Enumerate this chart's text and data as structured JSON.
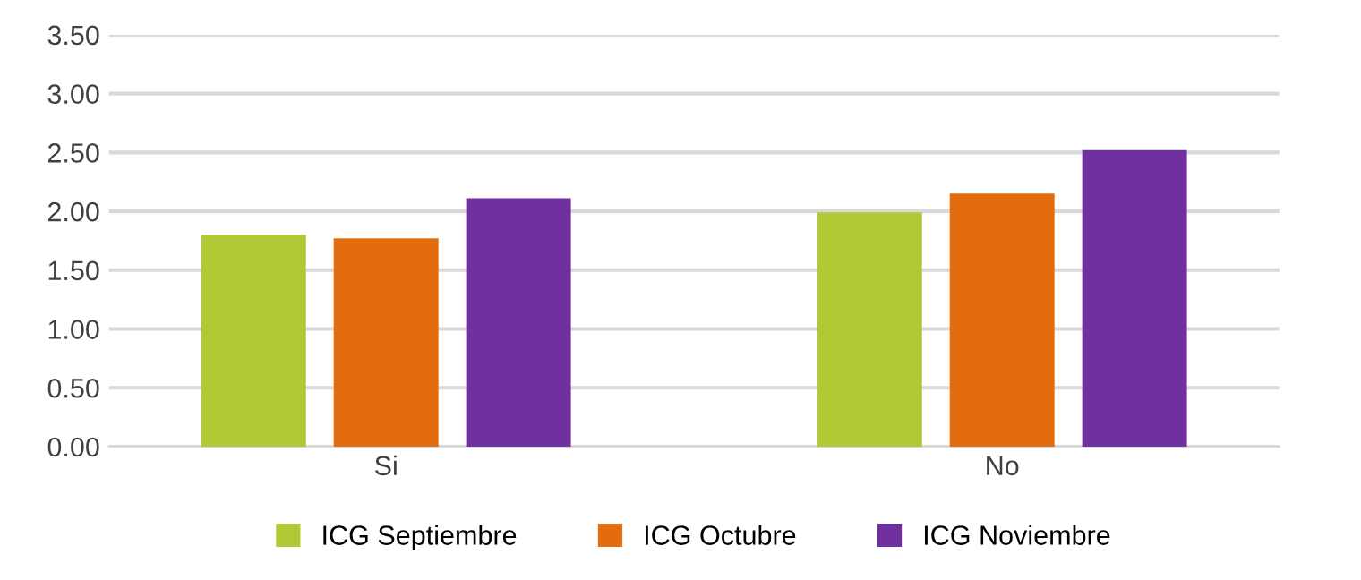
{
  "chart_data": {
    "type": "bar",
    "categories": [
      "Si",
      "No"
    ],
    "series": [
      {
        "name": "ICG Septiembre",
        "color": "#b2c935",
        "values": [
          1.8,
          1.99
        ]
      },
      {
        "name": "ICG Octubre",
        "color": "#e36c0e",
        "values": [
          1.77,
          2.15
        ]
      },
      {
        "name": "ICG Noviembre",
        "color": "#7030a0",
        "values": [
          2.11,
          2.52
        ]
      }
    ],
    "ylim": [
      0,
      3.5
    ],
    "yticks": [
      {
        "value": 0,
        "label": "0.00"
      },
      {
        "value": 0.5,
        "label": "0.50"
      },
      {
        "value": 1,
        "label": "1.00"
      },
      {
        "value": 1.5,
        "label": "1.50"
      },
      {
        "value": 2,
        "label": "2.00"
      },
      {
        "value": 2.5,
        "label": "2.50"
      },
      {
        "value": 3,
        "label": "3.00"
      },
      {
        "value": 3.5,
        "label": "3.50"
      }
    ],
    "grid": "y",
    "legend": "bottom"
  }
}
